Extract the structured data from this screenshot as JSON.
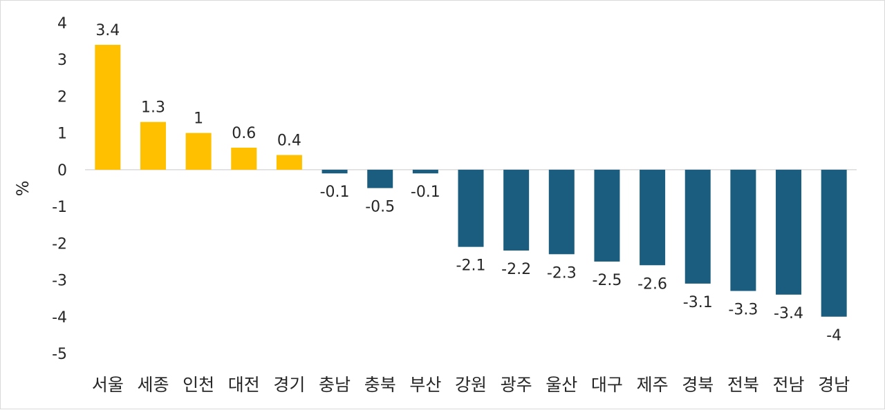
{
  "chart_data": {
    "type": "bar",
    "categories": [
      "서울",
      "세종",
      "인천",
      "대전",
      "경기",
      "충남",
      "충북",
      "부산",
      "강원",
      "광주",
      "울산",
      "대구",
      "제주",
      "경북",
      "전북",
      "전남",
      "경남"
    ],
    "values": [
      3.4,
      1.3,
      1,
      0.6,
      0.4,
      -0.1,
      -0.5,
      -0.1,
      -2.1,
      -2.2,
      -2.3,
      -2.5,
      -2.6,
      -3.1,
      -3.3,
      -3.4,
      -4
    ],
    "value_labels": [
      "3.4",
      "1.3",
      "1",
      "0.6",
      "0.4",
      "-0.1",
      "-0.5",
      "-0.1",
      "-2.1",
      "-2.2",
      "-2.3",
      "-2.5",
      "-2.6",
      "-3.1",
      "-3.3",
      "-3.4",
      "-4"
    ],
    "yticks": [
      "4",
      "3",
      "2",
      "1",
      "0",
      "-1",
      "-2",
      "-3",
      "-4",
      "-5"
    ],
    "ylim": [
      -5,
      4
    ],
    "ylabel": "%",
    "xlabel": "",
    "title": "",
    "grid": false,
    "legend": "none",
    "colors": {
      "positive": "#FFC000",
      "negative": "#1A5D7E",
      "zero_line": "#d9d9d9"
    }
  }
}
